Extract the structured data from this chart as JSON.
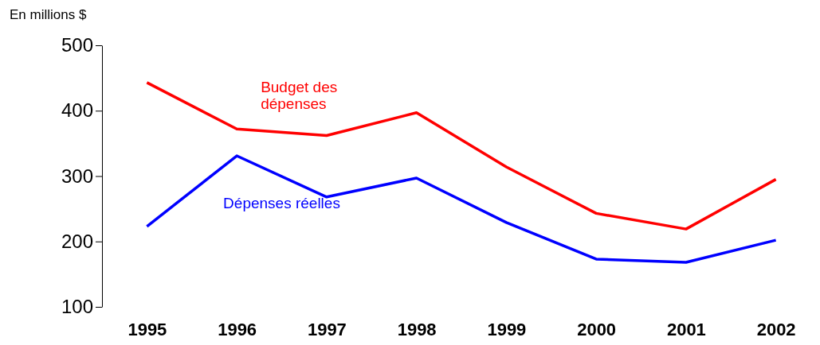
{
  "chart_data": {
    "type": "line",
    "ylabel": "En millions $",
    "categories": [
      "1995",
      "1996",
      "1997",
      "1998",
      "1999",
      "2000",
      "2001",
      "2002"
    ],
    "ylim": [
      100,
      500
    ],
    "yticks": [
      100,
      200,
      300,
      400,
      500
    ],
    "grid": false,
    "marker": "none",
    "line_style": "solid",
    "series": [
      {
        "name": "Budget des dépenses",
        "color": "#ff0000",
        "values": [
          443,
          372,
          362,
          397,
          314,
          243,
          219,
          295
        ]
      },
      {
        "name": "Dépenses réelles",
        "color": "#0000ff",
        "values": [
          223,
          331,
          268,
          297,
          229,
          173,
          168,
          202
        ]
      }
    ]
  }
}
